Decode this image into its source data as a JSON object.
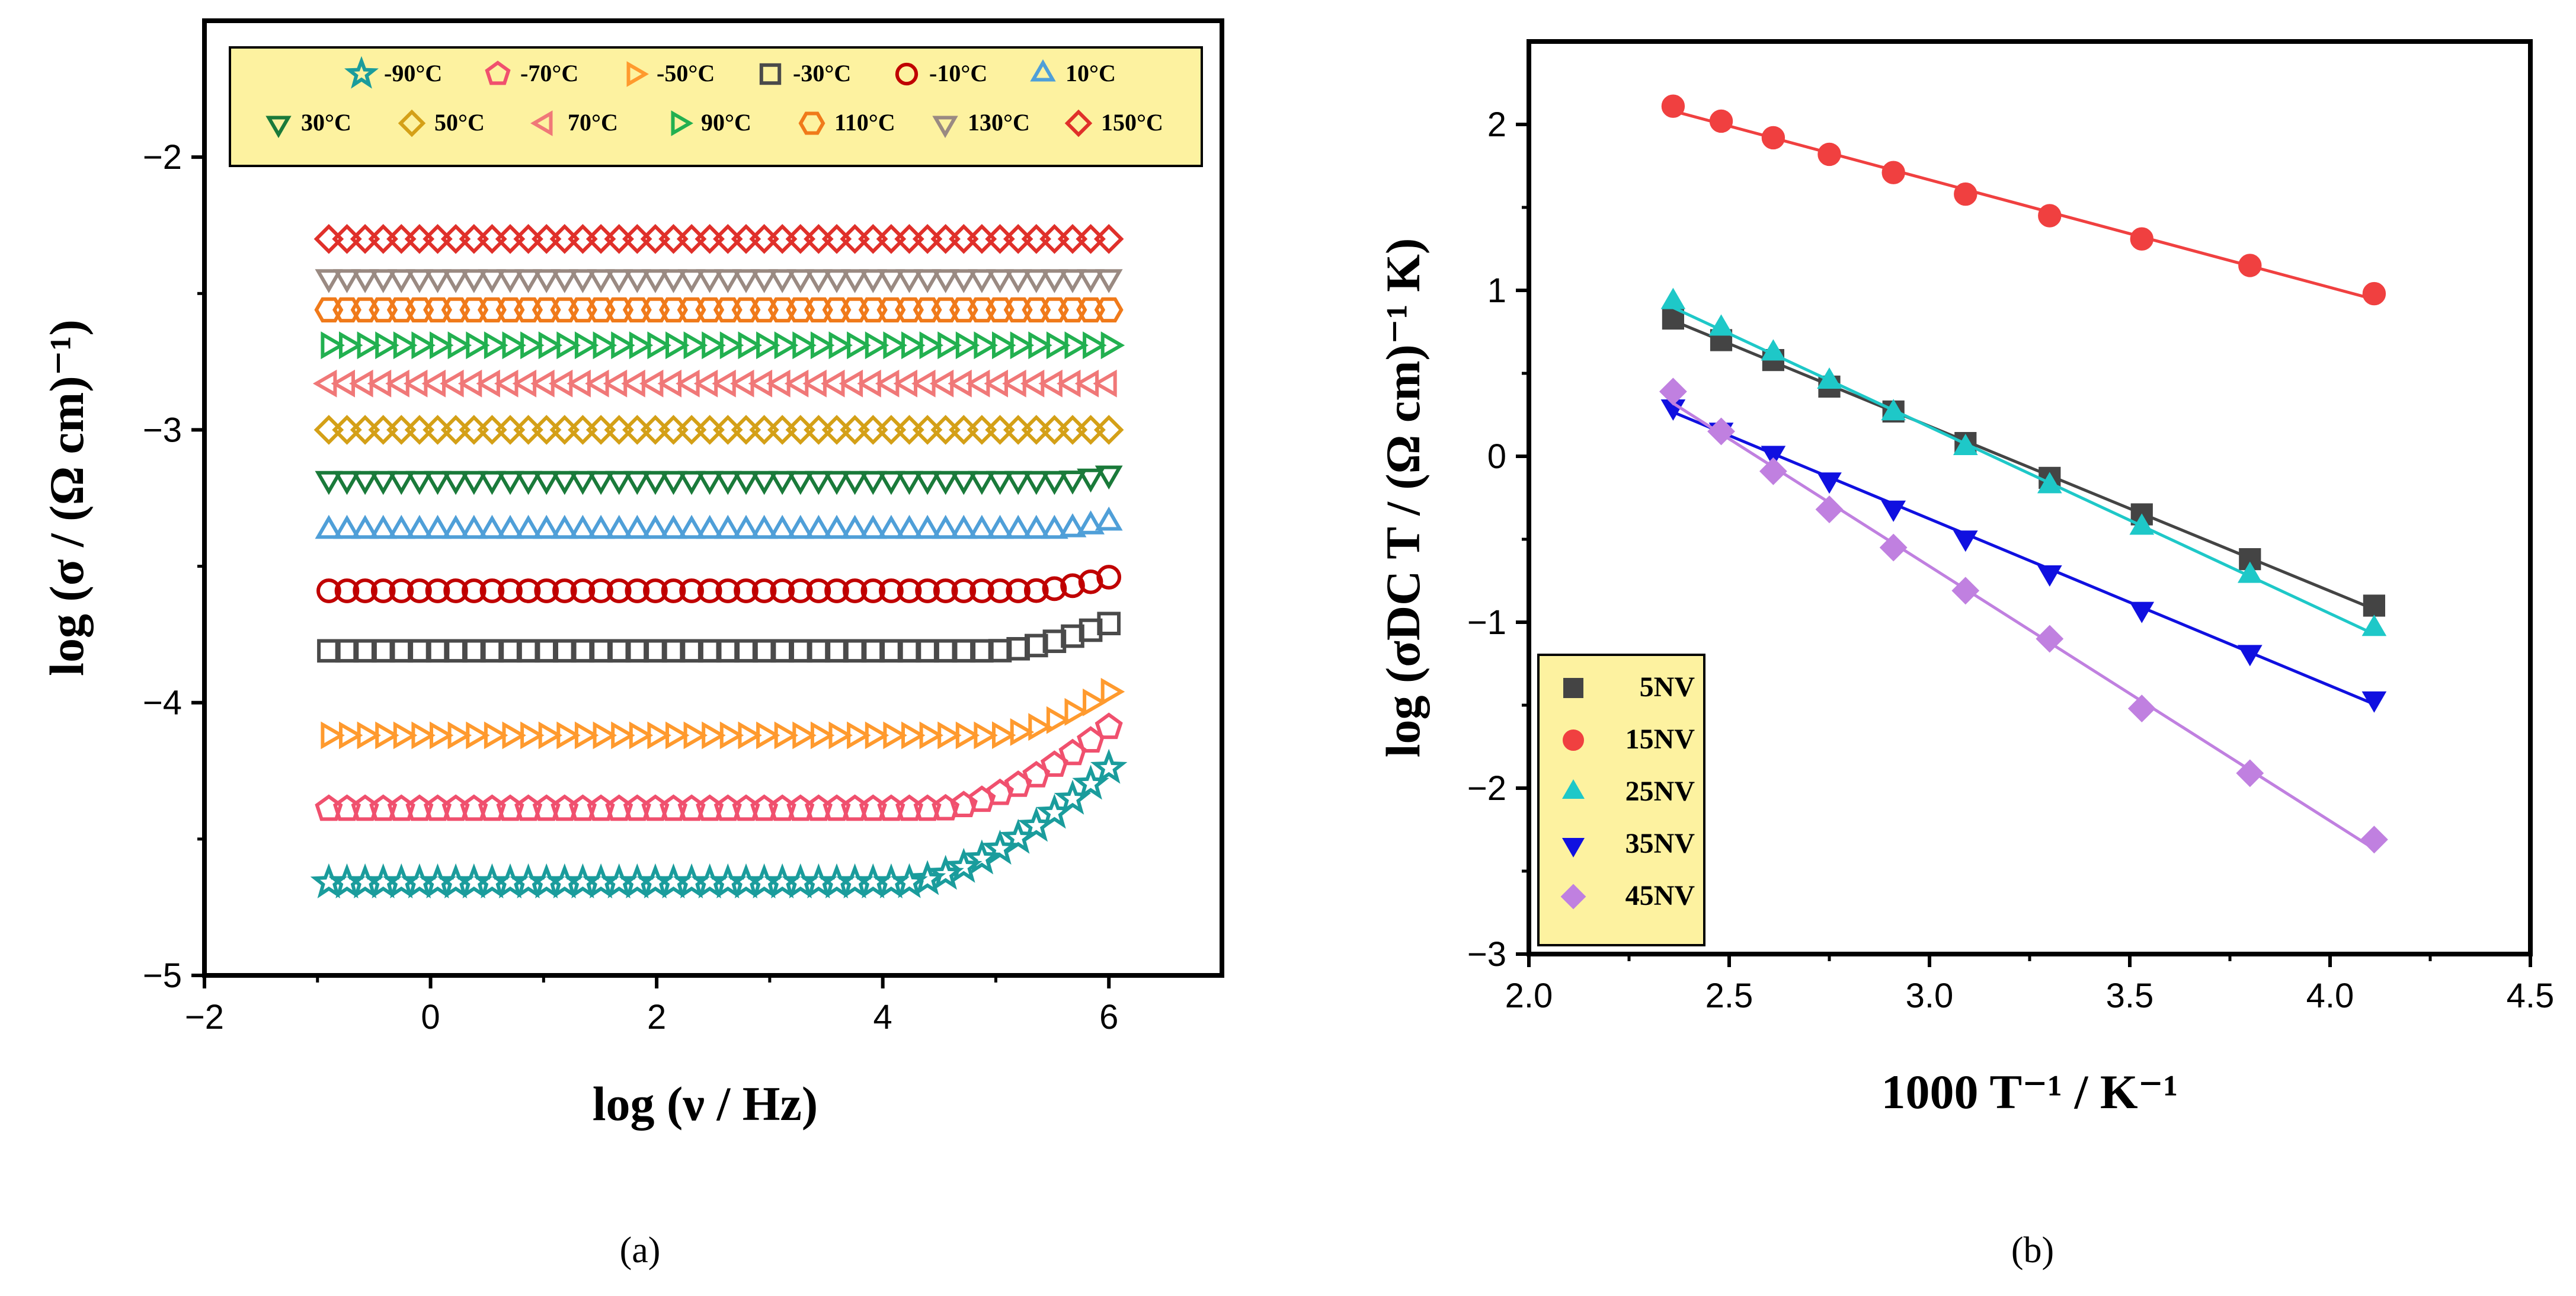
{
  "chart_data": [
    {
      "panel": "(a)",
      "type": "scatter",
      "xlabel": "log (ν / Hz)",
      "ylabel": "log (σ / (Ω cm)⁻¹)",
      "xlim": [
        -2,
        7
      ],
      "ylim": [
        -5,
        -1.5
      ],
      "xticks": [
        -2,
        0,
        2,
        4,
        6
      ],
      "yticks": [
        -5,
        -4,
        -3,
        -2
      ],
      "xtick_labels": [
        "−2",
        "0",
        "2",
        "4",
        "6"
      ],
      "ytick_labels": [
        "−5",
        "−4",
        "−3",
        "−2"
      ],
      "legend_position": "top",
      "x_range": [
        -0.9,
        6.0
      ],
      "points_per_series": 44,
      "series": [
        {
          "name": "-90°C",
          "marker": "star",
          "color": "#1a9c9c",
          "base": -4.66,
          "rise": 0.42,
          "onset": 4.2
        },
        {
          "name": "-70°C",
          "marker": "pentagon",
          "color": "#f0506e",
          "base": -4.39,
          "rise": 0.3,
          "onset": 4.5
        },
        {
          "name": "-50°C",
          "marker": "triangle-right",
          "color": "#ff9a2e",
          "base": -4.12,
          "rise": 0.16,
          "onset": 5.0
        },
        {
          "name": "-30°C",
          "marker": "square",
          "color": "#4a4a4a",
          "base": -3.81,
          "rise": 0.1,
          "onset": 5.0
        },
        {
          "name": "-10°C",
          "marker": "circle",
          "color": "#c00000",
          "base": -3.59,
          "rise": 0.05,
          "onset": 5.3
        },
        {
          "name": "10°C",
          "marker": "triangle-up",
          "color": "#4f9fd8",
          "base": -3.37,
          "rise": 0.03,
          "onset": 5.5
        },
        {
          "name": "30°C",
          "marker": "triangle-down",
          "color": "#1a7a3a",
          "base": -3.18,
          "rise": 0.02,
          "onset": 5.6
        },
        {
          "name": "50°C",
          "marker": "diamond",
          "color": "#d4a017",
          "base": -3.0,
          "rise": 0.0,
          "onset": 6
        },
        {
          "name": "70°C",
          "marker": "triangle-left",
          "color": "#f07878",
          "base": -2.83,
          "rise": 0.0,
          "onset": 6
        },
        {
          "name": "90°C",
          "marker": "triangle-right",
          "color": "#22b050",
          "base": -2.69,
          "rise": 0.0,
          "onset": 6
        },
        {
          "name": "110°C",
          "marker": "hexagon",
          "color": "#f07a1a",
          "base": -2.56,
          "rise": 0.0,
          "onset": 6
        },
        {
          "name": "130°C",
          "marker": "triangle-down",
          "color": "#9a8a82",
          "base": -2.44,
          "rise": 0.0,
          "onset": 6
        },
        {
          "name": "150°C",
          "marker": "diamond",
          "color": "#e0302a",
          "base": -2.3,
          "rise": 0.0,
          "onset": 6
        }
      ]
    },
    {
      "panel": "(b)",
      "type": "scatter",
      "xlabel": "1000 T⁻¹ / K⁻¹",
      "ylabel": "log (σDC T / (Ω cm)⁻¹ K)",
      "xlim": [
        2.0,
        4.5
      ],
      "ylim": [
        -3,
        2.5
      ],
      "xticks": [
        2.0,
        2.5,
        3.0,
        3.5,
        4.0,
        4.5
      ],
      "yticks": [
        -3,
        -2,
        -1,
        0,
        1,
        2
      ],
      "xtick_labels": [
        "2.0",
        "2.5",
        "3.0",
        "3.5",
        "4.0",
        "4.5"
      ],
      "ytick_labels": [
        "−3",
        "−2",
        "−1",
        "0",
        "1",
        "2"
      ],
      "legend_position": "bottom-left",
      "x": [
        2.36,
        2.48,
        2.61,
        2.75,
        2.91,
        3.09,
        3.3,
        3.53,
        3.8,
        4.11
      ],
      "series": [
        {
          "name": "5NV",
          "marker": "square",
          "color": "#444444",
          "values": [
            0.83,
            0.7,
            0.58,
            0.42,
            0.27,
            0.08,
            -0.13,
            -0.35,
            -0.62,
            -0.9
          ]
        },
        {
          "name": "15NV",
          "marker": "circle",
          "color": "#f04040",
          "values": [
            2.11,
            2.02,
            1.92,
            1.82,
            1.71,
            1.58,
            1.45,
            1.31,
            1.15,
            0.98
          ]
        },
        {
          "name": "25NV",
          "marker": "triangle-up",
          "color": "#1ec8c8",
          "values": [
            0.93,
            0.77,
            0.62,
            0.45,
            0.26,
            0.05,
            -0.18,
            -0.43,
            -0.72,
            -1.04
          ]
        },
        {
          "name": "35NV",
          "marker": "triangle-down",
          "color": "#1010e0",
          "values": [
            0.3,
            0.16,
            0.02,
            -0.14,
            -0.31,
            -0.49,
            -0.7,
            -0.92,
            -1.18,
            -1.46
          ]
        },
        {
          "name": "45NV",
          "marker": "diamond",
          "color": "#c080e0",
          "values": [
            0.39,
            0.15,
            -0.09,
            -0.32,
            -0.55,
            -0.81,
            -1.1,
            -1.52,
            -1.91,
            -2.31
          ]
        }
      ]
    }
  ],
  "captions": {
    "a": "(a)",
    "b": "(b)"
  }
}
